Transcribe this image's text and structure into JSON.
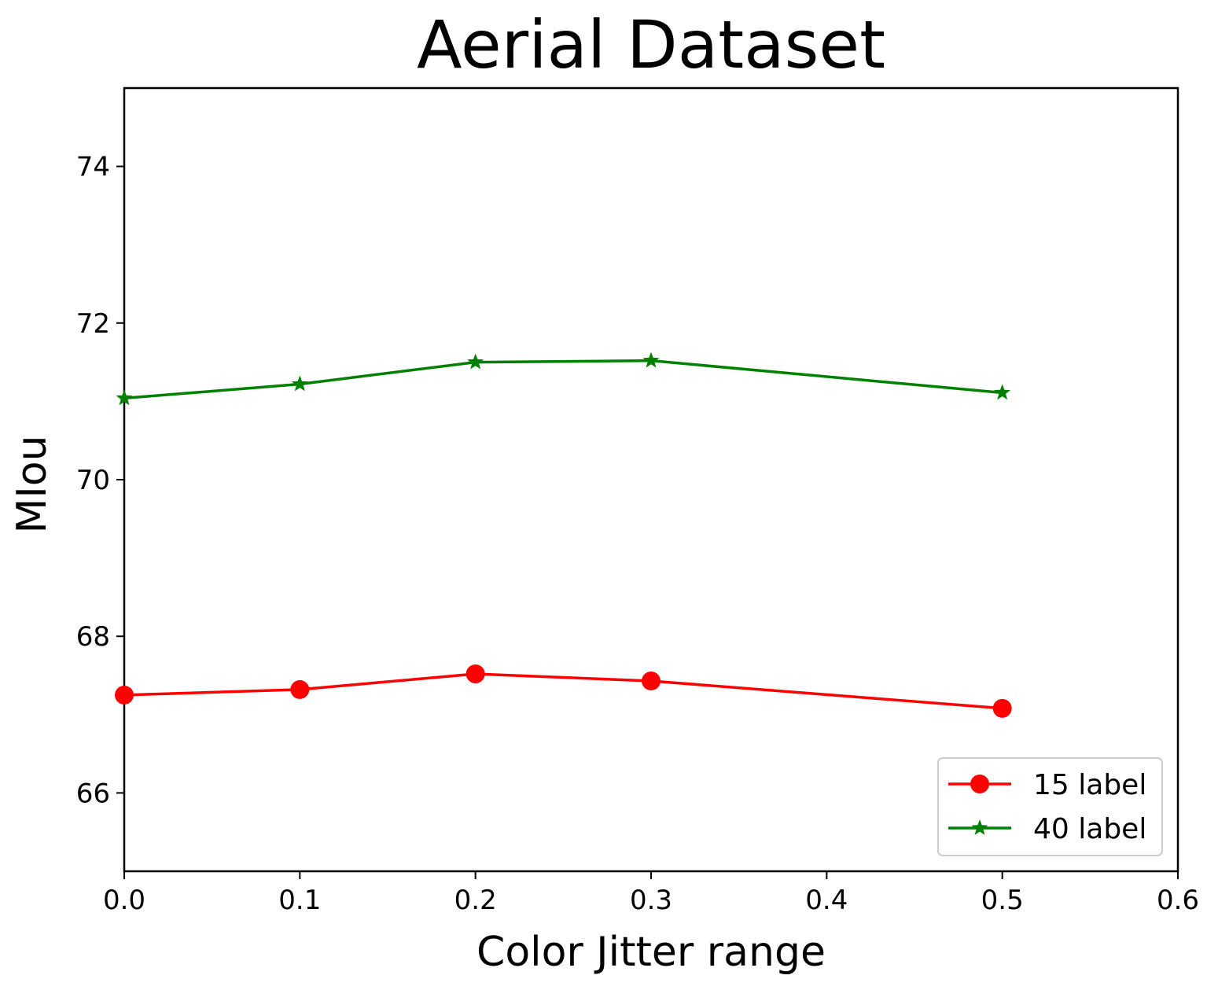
{
  "chart_data": {
    "type": "line",
    "title": "Aerial Dataset",
    "xlabel": "Color Jitter range",
    "ylabel": "MIou",
    "xlim": [
      0.0,
      0.6
    ],
    "ylim": [
      65.0,
      75.0
    ],
    "xticks": [
      "0.0",
      "0.1",
      "0.2",
      "0.3",
      "0.4",
      "0.5",
      "0.6"
    ],
    "yticks": [
      "66",
      "68",
      "70",
      "72",
      "74"
    ],
    "grid": false,
    "legend_position": "lower right",
    "x": [
      0.0,
      0.1,
      0.2,
      0.3,
      0.5
    ],
    "series": [
      {
        "name": "15 label",
        "color": "#ff0000",
        "marker": "circle",
        "values": [
          67.25,
          67.32,
          67.52,
          67.43,
          67.08
        ]
      },
      {
        "name": "40 label",
        "color": "#008000",
        "marker": "star",
        "values": [
          71.04,
          71.22,
          71.5,
          71.52,
          71.11
        ]
      }
    ]
  }
}
